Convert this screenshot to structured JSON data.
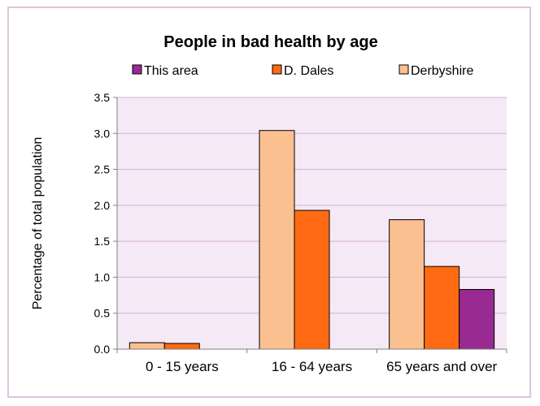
{
  "chart_data": {
    "type": "bar",
    "title": "People in bad health by age",
    "xlabel": "",
    "ylabel": "Percentage of total population",
    "categories": [
      "0 - 15 years",
      "16 - 64 years",
      "65 years and over"
    ],
    "series": [
      {
        "name": "Derbyshire",
        "color": "#fac090",
        "values": [
          0.09,
          3.04,
          1.8
        ]
      },
      {
        "name": "D. Dales",
        "color": "#ff6a13",
        "values": [
          0.08,
          1.93,
          1.15
        ]
      },
      {
        "name": "This area",
        "color": "#992a92",
        "values": [
          null,
          null,
          0.83
        ]
      }
    ],
    "legend_order": [
      "This area",
      "D. Dales",
      "Derbyshire"
    ],
    "ylim": [
      0,
      3.5
    ],
    "yticks": [
      "0.0",
      "0.5",
      "1.0",
      "1.5",
      "2.0",
      "2.5",
      "3.0",
      "3.5"
    ],
    "grid": true,
    "legend_position": "top",
    "plot_background": "#f5e9f6",
    "gridline_color": "#d9aed8"
  }
}
